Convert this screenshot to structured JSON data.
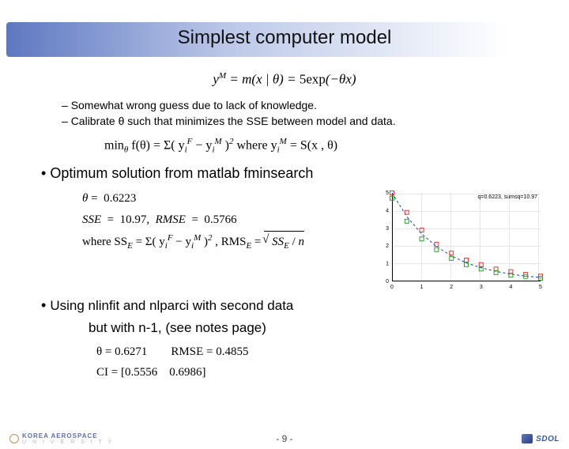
{
  "title": "Simplest computer model",
  "model_eq": "y = m(x | θ) = 5exp(−θx)",
  "model_eq_sup": "M",
  "bullets_dash": [
    "Somewhat wrong guess due to lack of knowledge.",
    "Calibrate θ such that minimizes the SSE between model and data."
  ],
  "min_eq_prefix": "min",
  "min_eq_sub": "θ",
  "min_eq_body": " f(θ) = Σ( y",
  "min_eq_iF": "F",
  "min_eq_mid": " − y",
  "min_eq_iM": "M",
  "min_eq_close": " )",
  "min_eq_sq": "2",
  "min_eq_where": "  where  y",
  "min_eq_where_M": "M",
  "min_eq_where_tail": " = S(x , θ)",
  "bullet_main": "Optimum solution from matlab fminsearch",
  "theta_line": "θ =  0.6223",
  "sse_line": "SSE  =  10.97,  RMSE  =  0.5766",
  "where_sse_prefix": "where SS",
  "where_sse_E": "E",
  "where_sse_eq": " = Σ( y",
  "where_sse_F": "F",
  "where_sse_mid": " − y",
  "where_sse_M": "M",
  "where_sse_close": " )",
  "where_sse_sq": "2",
  "where_rms_prefix": " ,  RMS",
  "where_rms_E": "E",
  "where_rms_eq": " = ",
  "where_rms_sqrt": "SS  / n",
  "where_rms_sqrt_E": "E",
  "bullet_third_1": "Using nlinfit and nlparci with second data",
  "bullet_third_2": "but with n-1, (see notes page)",
  "theta2_line": "θ = 0.6271        RMSE = 0.4855",
  "ci_line": "CI = [0.5556    0.6986]",
  "chart": {
    "caption": "q=0.6223, sumsq=10.97",
    "xlim": [
      0,
      5
    ],
    "ylim": [
      0,
      5
    ],
    "xticks": [
      0,
      1,
      2,
      3,
      4,
      5
    ],
    "yticks": [
      0,
      1,
      2,
      3,
      4,
      5
    ],
    "background_color": "#ffffff",
    "grid_color": "#e6e6e6",
    "model_line": {
      "color": "#1438d6",
      "dash": "3,3",
      "width": 1,
      "points": [
        [
          0,
          5.0
        ],
        [
          0.5,
          3.66
        ],
        [
          1.0,
          2.68
        ],
        [
          1.5,
          1.97
        ],
        [
          2.0,
          1.44
        ],
        [
          2.5,
          1.05
        ],
        [
          3.0,
          0.77
        ],
        [
          3.5,
          0.57
        ],
        [
          4.0,
          0.41
        ],
        [
          4.5,
          0.3
        ],
        [
          5.0,
          0.22
        ]
      ]
    },
    "data1": {
      "color": "#e23b3b",
      "marker": "square",
      "size": 5,
      "points": [
        [
          0,
          5.0
        ],
        [
          0.5,
          3.9
        ],
        [
          1.0,
          2.9
        ],
        [
          1.5,
          2.1
        ],
        [
          2.0,
          1.6
        ],
        [
          2.5,
          1.2
        ],
        [
          3.0,
          0.95
        ],
        [
          3.5,
          0.7
        ],
        [
          4.0,
          0.55
        ],
        [
          4.5,
          0.4
        ],
        [
          5.0,
          0.3
        ]
      ]
    },
    "data2": {
      "color": "#2aa12a",
      "marker": "square",
      "size": 5,
      "points": [
        [
          0,
          4.7
        ],
        [
          0.5,
          3.4
        ],
        [
          1.0,
          2.4
        ],
        [
          1.5,
          1.8
        ],
        [
          2.0,
          1.3
        ],
        [
          2.5,
          0.95
        ],
        [
          3.0,
          0.7
        ],
        [
          3.5,
          0.5
        ],
        [
          4.0,
          0.35
        ],
        [
          4.5,
          0.28
        ],
        [
          5.0,
          0.18
        ]
      ]
    }
  },
  "footer": {
    "left_top": "KOREA AEROSPACE",
    "left_bottom": "U N I V E R S I T Y",
    "page": "-  9  -",
    "right": "SDOL"
  }
}
